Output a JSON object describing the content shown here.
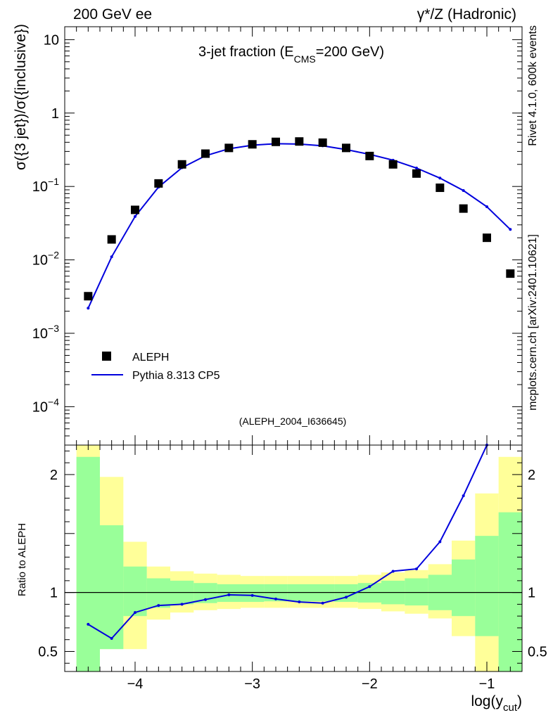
{
  "header": {
    "left_label": "200 GeV ee",
    "right_label": "γ*/Z (Hadronic)"
  },
  "side_labels": {
    "rivet": "Rivet 4.1.0,  600k events",
    "mcplots": "mcplots.cern.ch [arXiv:2401.10621]"
  },
  "colors": {
    "data": "#000000",
    "mc": "#0000dd",
    "band_inner": "#99ff99",
    "band_outer": "#ffff99",
    "watermark": "#999999"
  },
  "chart_data": [
    {
      "type": "scatter+line",
      "title_prefix": "3-jet fraction (E",
      "title_sub": "CMS",
      "title_suffix": "=200 GeV)",
      "ylabel": "σ({3 jet})/σ({inclusive})",
      "yscale": "log",
      "ylim": [
        3e-05,
        15
      ],
      "xlim": [
        -4.6,
        -0.7
      ],
      "y_ticks": [
        {
          "value": 10,
          "label": "10"
        },
        {
          "value": 1,
          "label": "1"
        },
        {
          "value": 0.1,
          "base": "10",
          "exp": "−1"
        },
        {
          "value": 0.01,
          "base": "10",
          "exp": "−2"
        },
        {
          "value": 0.001,
          "base": "10",
          "exp": "−3"
        },
        {
          "value": 0.0001,
          "base": "10",
          "exp": "−4"
        }
      ],
      "analysis_label": "(ALEPH_2004_I636645)",
      "legend": {
        "placement": "lower-left",
        "data_label": "ALEPH",
        "mc_label": "Pythia 8.313 CP5"
      },
      "series": [
        {
          "name": "ALEPH",
          "style": "markers",
          "x": [
            -4.4,
            -4.2,
            -4.0,
            -3.8,
            -3.6,
            -3.4,
            -3.2,
            -3.0,
            -2.8,
            -2.6,
            -2.4,
            -2.2,
            -2.0,
            -1.8,
            -1.6,
            -1.4,
            -1.2,
            -1.0,
            -0.8
          ],
          "y": [
            0.0032,
            0.019,
            0.048,
            0.11,
            0.2,
            0.28,
            0.335,
            0.375,
            0.405,
            0.41,
            0.395,
            0.335,
            0.26,
            0.2,
            0.15,
            0.096,
            0.05,
            0.02,
            0.0065
          ]
        },
        {
          "name": "Pythia 8.313 CP5",
          "style": "line",
          "x": [
            -4.4,
            -4.2,
            -4.0,
            -3.8,
            -3.6,
            -3.4,
            -3.2,
            -3.0,
            -2.8,
            -2.6,
            -2.4,
            -2.2,
            -2.0,
            -1.8,
            -1.6,
            -1.4,
            -1.2,
            -1.0,
            -0.8
          ],
          "y": [
            0.0022,
            0.011,
            0.039,
            0.098,
            0.18,
            0.262,
            0.326,
            0.365,
            0.382,
            0.378,
            0.358,
            0.318,
            0.274,
            0.228,
            0.178,
            0.13,
            0.088,
            0.053,
            0.026
          ]
        }
      ]
    },
    {
      "type": "ratio",
      "ylabel": "Ratio to ALEPH",
      "xlabel_main": "log(y",
      "xlabel_sub": "cut",
      "xlabel_close": ")",
      "ylim": [
        0.33,
        2.25
      ],
      "xlim": [
        -4.6,
        -0.7
      ],
      "reference_line": 1,
      "y_ticks": [
        {
          "value": 2,
          "label": "2"
        },
        {
          "value": 1,
          "label": "1"
        },
        {
          "value": 0.5,
          "label": "0.5"
        }
      ],
      "x_ticks": [
        {
          "value": -4,
          "label": "−4"
        },
        {
          "value": -3,
          "label": "−3"
        },
        {
          "value": -2,
          "label": "−2"
        },
        {
          "value": -1,
          "label": "−1"
        }
      ],
      "bin_edges": [
        -4.5,
        -4.3,
        -4.1,
        -3.9,
        -3.7,
        -3.5,
        -3.3,
        -3.1,
        -2.9,
        -2.7,
        -2.5,
        -2.3,
        -2.1,
        -1.9,
        -1.7,
        -1.5,
        -1.3,
        -1.1,
        -0.9,
        -0.7
      ],
      "band_inner": [
        [
          0.25,
          2.15
        ],
        [
          0.52,
          1.57
        ],
        [
          0.8,
          1.22
        ],
        [
          0.87,
          1.12
        ],
        [
          0.9,
          1.1
        ],
        [
          0.91,
          1.08
        ],
        [
          0.92,
          1.07
        ],
        [
          0.92,
          1.07
        ],
        [
          0.925,
          1.07
        ],
        [
          0.925,
          1.07
        ],
        [
          0.925,
          1.07
        ],
        [
          0.92,
          1.07
        ],
        [
          0.915,
          1.08
        ],
        [
          0.9,
          1.1
        ],
        [
          0.89,
          1.12
        ],
        [
          0.85,
          1.15
        ],
        [
          0.8,
          1.28
        ],
        [
          0.63,
          1.48
        ],
        [
          0.3,
          1.68
        ]
      ],
      "band_outer": [
        [
          0.25,
          2.5
        ],
        [
          0.52,
          1.98
        ],
        [
          0.52,
          1.43
        ],
        [
          0.77,
          1.22
        ],
        [
          0.83,
          1.18
        ],
        [
          0.85,
          1.16
        ],
        [
          0.86,
          1.15
        ],
        [
          0.87,
          1.14
        ],
        [
          0.87,
          1.14
        ],
        [
          0.87,
          1.14
        ],
        [
          0.87,
          1.14
        ],
        [
          0.87,
          1.14
        ],
        [
          0.86,
          1.15
        ],
        [
          0.84,
          1.17
        ],
        [
          0.82,
          1.19
        ],
        [
          0.78,
          1.24
        ],
        [
          0.63,
          1.44
        ],
        [
          0.3,
          1.84
        ],
        [
          0.3,
          2.15
        ]
      ],
      "ratio_x": [
        -4.4,
        -4.2,
        -4.0,
        -3.8,
        -3.6,
        -3.4,
        -3.2,
        -3.0,
        -2.8,
        -2.6,
        -2.4,
        -2.2,
        -2.0,
        -1.8,
        -1.6,
        -1.4,
        -1.2,
        -1.0
      ],
      "ratio_y": [
        0.73,
        0.61,
        0.83,
        0.89,
        0.9,
        0.94,
        0.98,
        0.975,
        0.945,
        0.92,
        0.91,
        0.96,
        1.05,
        1.18,
        1.2,
        1.43,
        1.82,
        2.25
      ]
    }
  ]
}
